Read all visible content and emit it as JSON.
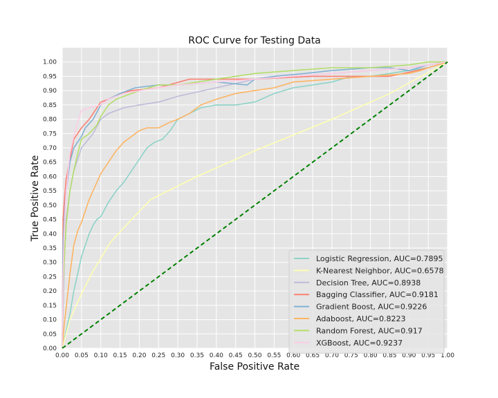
{
  "chart_data": {
    "type": "line",
    "title": "ROC Curve for Testing Data",
    "xlabel": "False Positive Rate",
    "ylabel": "True Positive Rate",
    "xlim": [
      0,
      1
    ],
    "ylim": [
      0,
      1.05
    ],
    "xticks": [
      "0.00",
      "0.05",
      "0.10",
      "0.15",
      "0.20",
      "0.25",
      "0.30",
      "0.35",
      "0.40",
      "0.45",
      "0.50",
      "0.55",
      "0.60",
      "0.65",
      "0.70",
      "0.75",
      "0.80",
      "0.85",
      "0.90",
      "0.95",
      "1.00"
    ],
    "yticks": [
      "0.00",
      "0.05",
      "0.10",
      "0.15",
      "0.20",
      "0.25",
      "0.30",
      "0.35",
      "0.40",
      "0.45",
      "0.50",
      "0.55",
      "0.60",
      "0.65",
      "0.70",
      "0.75",
      "0.80",
      "0.85",
      "0.90",
      "0.95",
      "1.00"
    ],
    "grid": true,
    "legend_position": "lower-right",
    "background": "#e5e5e5",
    "series": [
      {
        "name": "Logistic Regression, AUC=0.7895",
        "color": "#8dd3c7",
        "x": [
          0,
          0.005,
          0.01,
          0.02,
          0.03,
          0.04,
          0.05,
          0.06,
          0.07,
          0.08,
          0.09,
          0.1,
          0.12,
          0.14,
          0.16,
          0.18,
          0.2,
          0.22,
          0.24,
          0.26,
          0.28,
          0.3,
          0.33,
          0.36,
          0.4,
          0.45,
          0.5,
          0.55,
          0.6,
          0.65,
          0.7,
          0.75,
          0.8,
          0.85,
          0.9,
          0.95,
          1.0
        ],
        "y": [
          0,
          0.03,
          0.06,
          0.12,
          0.2,
          0.26,
          0.32,
          0.36,
          0.4,
          0.43,
          0.45,
          0.46,
          0.51,
          0.55,
          0.58,
          0.62,
          0.66,
          0.7,
          0.72,
          0.73,
          0.76,
          0.8,
          0.82,
          0.84,
          0.85,
          0.85,
          0.86,
          0.89,
          0.91,
          0.92,
          0.93,
          0.95,
          0.95,
          0.96,
          0.97,
          0.98,
          1.0
        ]
      },
      {
        "name": "K-Nearest Neighbor, AUC=0.6578",
        "color": "#ffffb3",
        "x": [
          0,
          0.02,
          0.05,
          0.08,
          0.125,
          0.18,
          0.23,
          0.35,
          0.5,
          0.7,
          0.85,
          1.0
        ],
        "y": [
          0,
          0.1,
          0.19,
          0.27,
          0.37,
          0.45,
          0.52,
          0.6,
          0.69,
          0.8,
          0.89,
          1.0
        ]
      },
      {
        "name": "Decision Tree, AUC=0.8938",
        "color": "#bebada",
        "x": [
          0,
          0.005,
          0.01,
          0.02,
          0.03,
          0.05,
          0.08,
          0.1,
          0.12,
          0.16,
          0.2,
          0.25,
          0.3,
          0.4,
          0.5,
          0.6,
          0.7,
          0.8,
          0.9,
          1.0
        ],
        "y": [
          0,
          0.3,
          0.45,
          0.55,
          0.62,
          0.7,
          0.75,
          0.8,
          0.82,
          0.84,
          0.85,
          0.86,
          0.88,
          0.91,
          0.94,
          0.95,
          0.96,
          0.97,
          0.98,
          1.0
        ]
      },
      {
        "name": "Bagging Classifier, AUC=0.9181",
        "color": "#fb8072",
        "x": [
          0,
          0.002,
          0.005,
          0.01,
          0.02,
          0.03,
          0.05,
          0.07,
          0.09,
          0.1,
          0.12,
          0.15,
          0.18,
          0.25,
          0.33,
          0.4,
          0.5,
          0.65,
          0.7,
          0.85,
          0.92,
          0.95,
          1.0
        ],
        "y": [
          0,
          0.45,
          0.51,
          0.59,
          0.66,
          0.73,
          0.77,
          0.8,
          0.84,
          0.86,
          0.87,
          0.89,
          0.9,
          0.91,
          0.94,
          0.94,
          0.94,
          0.95,
          0.95,
          0.95,
          0.97,
          0.98,
          1.0
        ]
      },
      {
        "name": "Gradient Boost, AUC=0.9226",
        "color": "#80b1d3",
        "x": [
          0,
          0.002,
          0.005,
          0.01,
          0.02,
          0.03,
          0.05,
          0.06,
          0.08,
          0.1,
          0.12,
          0.15,
          0.19,
          0.25,
          0.3,
          0.4,
          0.48,
          0.5,
          0.55,
          0.63,
          0.7,
          0.8,
          0.85,
          0.9,
          0.95,
          1.0
        ],
        "y": [
          0,
          0.36,
          0.45,
          0.55,
          0.65,
          0.7,
          0.74,
          0.77,
          0.8,
          0.85,
          0.87,
          0.89,
          0.91,
          0.92,
          0.92,
          0.93,
          0.92,
          0.94,
          0.95,
          0.96,
          0.97,
          0.98,
          0.98,
          0.97,
          0.99,
          1.0
        ]
      },
      {
        "name": "Adaboost, AUC=0.8223",
        "color": "#fdb462",
        "x": [
          0,
          0.005,
          0.01,
          0.02,
          0.03,
          0.04,
          0.05,
          0.06,
          0.07,
          0.08,
          0.09,
          0.1,
          0.12,
          0.14,
          0.16,
          0.18,
          0.2,
          0.22,
          0.25,
          0.28,
          0.3,
          0.33,
          0.36,
          0.4,
          0.45,
          0.5,
          0.55,
          0.6,
          0.7,
          0.8,
          0.9,
          0.93,
          0.95,
          1.0
        ],
        "y": [
          0,
          0.08,
          0.14,
          0.26,
          0.36,
          0.41,
          0.44,
          0.48,
          0.52,
          0.55,
          0.58,
          0.61,
          0.65,
          0.69,
          0.72,
          0.74,
          0.76,
          0.77,
          0.77,
          0.79,
          0.8,
          0.82,
          0.85,
          0.87,
          0.89,
          0.9,
          0.91,
          0.93,
          0.94,
          0.95,
          0.96,
          0.97,
          0.98,
          1.0
        ]
      },
      {
        "name": "Random Forest, AUC=0.917",
        "color": "#b3de69",
        "x": [
          0,
          0.002,
          0.005,
          0.01,
          0.02,
          0.03,
          0.04,
          0.05,
          0.07,
          0.09,
          0.1,
          0.12,
          0.14,
          0.16,
          0.2,
          0.25,
          0.3,
          0.4,
          0.5,
          0.6,
          0.7,
          0.8,
          0.9,
          0.95,
          1.0
        ],
        "y": [
          0,
          0.22,
          0.3,
          0.43,
          0.55,
          0.62,
          0.68,
          0.73,
          0.75,
          0.78,
          0.81,
          0.85,
          0.87,
          0.88,
          0.9,
          0.92,
          0.92,
          0.94,
          0.96,
          0.97,
          0.98,
          0.98,
          0.99,
          1.0,
          1.0
        ]
      },
      {
        "name": "XGBoost, AUC=0.9237",
        "color": "#fccde5",
        "x": [
          0,
          0.002,
          0.005,
          0.01,
          0.02,
          0.03,
          0.04,
          0.05,
          0.07,
          0.1,
          0.12,
          0.14,
          0.16,
          0.2,
          0.3,
          0.4,
          0.5,
          0.6,
          0.7,
          0.8,
          0.9,
          1.0
        ],
        "y": [
          0,
          0.25,
          0.4,
          0.55,
          0.68,
          0.74,
          0.79,
          0.83,
          0.84,
          0.85,
          0.87,
          0.88,
          0.89,
          0.9,
          0.92,
          0.93,
          0.94,
          0.95,
          0.96,
          0.97,
          0.98,
          1.0
        ]
      },
      {
        "name": "",
        "color": "#008000",
        "dashed": true,
        "x": [
          0,
          1
        ],
        "y": [
          0,
          1
        ]
      }
    ]
  }
}
